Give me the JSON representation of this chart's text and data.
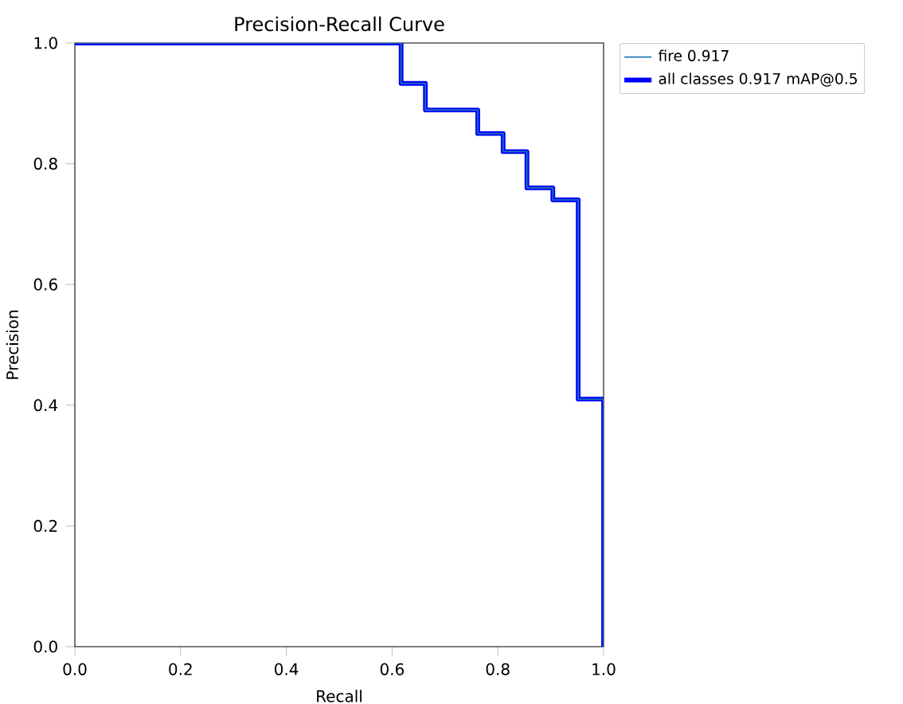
{
  "chart_data": {
    "type": "step",
    "title": "Precision-Recall Curve",
    "xlabel": "Recall",
    "ylabel": "Precision",
    "xlim": [
      0,
      1
    ],
    "ylim": [
      0,
      1
    ],
    "xticks": [
      {
        "value": 0,
        "label": "0.0"
      },
      0.2,
      0.4,
      0.6,
      0.8,
      {
        "value": 1,
        "label": "1.0"
      }
    ],
    "yticks": [
      {
        "value": 0,
        "label": "0.0"
      },
      0.2,
      0.4,
      0.6,
      0.8,
      {
        "value": 1,
        "label": "1.0"
      }
    ],
    "grid": false,
    "legend": "top right",
    "x": [
      0,
      0.617,
      0.663,
      0.762,
      0.81,
      0.855,
      0.904,
      0.952,
      1.0,
      1.0
    ],
    "series": [
      {
        "name": "fire 0.917",
        "color": "#1f77b4",
        "values": [
          1,
          0.933,
          0.889,
          0.85,
          0.82,
          0.76,
          0.74,
          0.41,
          0.41,
          0
        ]
      },
      {
        "name": "all classes 0.917 mAP@0.5",
        "color": "#0000ff",
        "values": [
          1,
          0.933,
          0.889,
          0.85,
          0.82,
          0.76,
          0.74,
          0.41,
          0.41,
          0
        ]
      }
    ]
  }
}
